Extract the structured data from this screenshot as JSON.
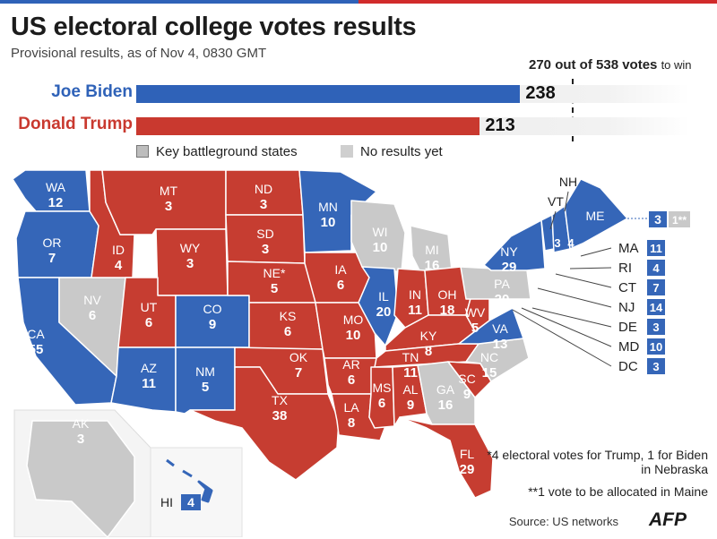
{
  "title": "US electoral college votes results",
  "subtitle": "Provisional results, as of Nov 4, 0830 GMT",
  "threshold": {
    "strong": "270 out of 538 votes",
    "tail": "to win",
    "value": 270,
    "total": 538
  },
  "candidates": [
    {
      "name": "Joe Biden",
      "votes": "238",
      "value": 238,
      "color": "#2f62b8"
    },
    {
      "name": "Donald Trump",
      "votes": "213",
      "value": 213,
      "color": "#c9392f"
    }
  ],
  "legend": {
    "battleground": "Key battleground states",
    "no_results": "No results yet"
  },
  "colors": {
    "biden": "#3566b8",
    "trump": "#c63d31",
    "pending": "#c9c9c9",
    "inset_bg": "#f4f4f4"
  },
  "states": [
    {
      "code": "WA",
      "votes": "12",
      "result": "biden"
    },
    {
      "code": "OR",
      "votes": "7",
      "result": "biden"
    },
    {
      "code": "CA",
      "votes": "55",
      "result": "biden"
    },
    {
      "code": "NV",
      "votes": "6",
      "result": "pending"
    },
    {
      "code": "ID",
      "votes": "4",
      "result": "trump"
    },
    {
      "code": "MT",
      "votes": "3",
      "result": "trump"
    },
    {
      "code": "WY",
      "votes": "3",
      "result": "trump"
    },
    {
      "code": "UT",
      "votes": "6",
      "result": "trump"
    },
    {
      "code": "AZ",
      "votes": "11",
      "result": "biden"
    },
    {
      "code": "CO",
      "votes": "9",
      "result": "biden"
    },
    {
      "code": "NM",
      "votes": "5",
      "result": "biden"
    },
    {
      "code": "ND",
      "votes": "3",
      "result": "trump"
    },
    {
      "code": "SD",
      "votes": "3",
      "result": "trump"
    },
    {
      "code": "NE*",
      "votes": "5",
      "result": "trump"
    },
    {
      "code": "KS",
      "votes": "6",
      "result": "trump"
    },
    {
      "code": "OK",
      "votes": "7",
      "result": "trump"
    },
    {
      "code": "TX",
      "votes": "38",
      "result": "trump"
    },
    {
      "code": "MN",
      "votes": "10",
      "result": "biden"
    },
    {
      "code": "IA",
      "votes": "6",
      "result": "trump"
    },
    {
      "code": "MO",
      "votes": "10",
      "result": "trump"
    },
    {
      "code": "AR",
      "votes": "6",
      "result": "trump"
    },
    {
      "code": "LA",
      "votes": "8",
      "result": "trump"
    },
    {
      "code": "WI",
      "votes": "10",
      "result": "pending"
    },
    {
      "code": "IL",
      "votes": "20",
      "result": "biden"
    },
    {
      "code": "MI",
      "votes": "16",
      "result": "pending"
    },
    {
      "code": "IN",
      "votes": "11",
      "result": "trump"
    },
    {
      "code": "OH",
      "votes": "18",
      "result": "trump"
    },
    {
      "code": "KY",
      "votes": "8",
      "result": "trump"
    },
    {
      "code": "TN",
      "votes": "11",
      "result": "trump"
    },
    {
      "code": "MS",
      "votes": "6",
      "result": "trump"
    },
    {
      "code": "AL",
      "votes": "9",
      "result": "trump"
    },
    {
      "code": "GA",
      "votes": "16",
      "result": "pending"
    },
    {
      "code": "FL",
      "votes": "29",
      "result": "trump"
    },
    {
      "code": "SC",
      "votes": "9",
      "result": "trump"
    },
    {
      "code": "NC",
      "votes": "15",
      "result": "pending"
    },
    {
      "code": "VA",
      "votes": "13",
      "result": "biden"
    },
    {
      "code": "WV",
      "votes": "5",
      "result": "trump"
    },
    {
      "code": "PA",
      "votes": "20",
      "result": "pending"
    },
    {
      "code": "NY",
      "votes": "29",
      "result": "biden"
    },
    {
      "code": "VT",
      "votes": "3",
      "result": "biden"
    },
    {
      "code": "NH",
      "votes": "4",
      "result": "biden"
    },
    {
      "code": "ME",
      "votes": "3",
      "result": "biden"
    },
    {
      "code": "AK",
      "votes": "3",
      "result": "pending"
    },
    {
      "code": "HI",
      "votes": "4",
      "result": "biden"
    }
  ],
  "maine_extra": "1**",
  "small_states": [
    {
      "code": "MA",
      "votes": "11"
    },
    {
      "code": "RI",
      "votes": "4"
    },
    {
      "code": "CT",
      "votes": "7"
    },
    {
      "code": "NJ",
      "votes": "14"
    },
    {
      "code": "DE",
      "votes": "3"
    },
    {
      "code": "MD",
      "votes": "10"
    },
    {
      "code": "DC",
      "votes": "3"
    }
  ],
  "footnotes": [
    "*4 electoral votes for Trump, 1 for Biden in Nebraska",
    "**1 vote to be allocated in Maine"
  ],
  "source": "Source: US networks",
  "logo": "AFP"
}
